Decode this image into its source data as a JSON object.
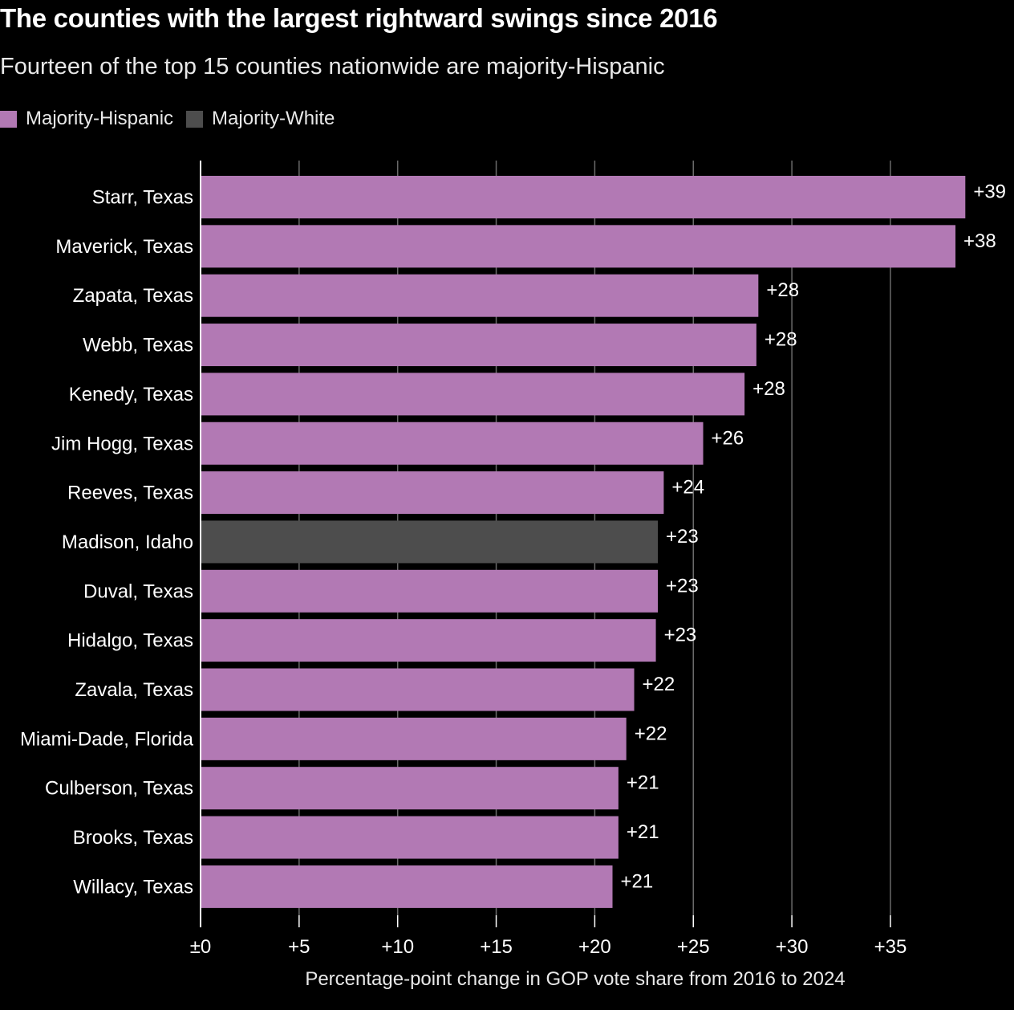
{
  "title": "The counties with the largest rightward swings since 2016",
  "subtitle": "Fourteen of the top 15 counties nationwide are majority-Hispanic",
  "legend": [
    {
      "label": "Majority-Hispanic",
      "color": "#b279b4"
    },
    {
      "label": "Majority-White",
      "color": "#4d4d4d"
    }
  ],
  "chart_data": {
    "type": "bar",
    "orientation": "horizontal",
    "categories": [
      "Starr, Texas",
      "Maverick, Texas",
      "Zapata, Texas",
      "Webb, Texas",
      "Kenedy, Texas",
      "Jim Hogg, Texas",
      "Reeves, Texas",
      "Madison, Idaho",
      "Duval, Texas",
      "Hidalgo, Texas",
      "Zavala, Texas",
      "Miami-Dade, Florida",
      "Culberson, Texas",
      "Brooks, Texas",
      "Willacy, Texas"
    ],
    "values": [
      38.8,
      38.3,
      28.3,
      28.2,
      27.6,
      25.5,
      23.5,
      23.2,
      23.2,
      23.1,
      22.0,
      21.6,
      21.2,
      21.2,
      20.9
    ],
    "value_labels": [
      "+39",
      "+38",
      "+28",
      "+28",
      "+28",
      "+26",
      "+24",
      "+23",
      "+23",
      "+23",
      "+22",
      "+22",
      "+21",
      "+21",
      "+21"
    ],
    "groups": [
      "Majority-Hispanic",
      "Majority-Hispanic",
      "Majority-Hispanic",
      "Majority-Hispanic",
      "Majority-Hispanic",
      "Majority-Hispanic",
      "Majority-Hispanic",
      "Majority-White",
      "Majority-Hispanic",
      "Majority-Hispanic",
      "Majority-Hispanic",
      "Majority-Hispanic",
      "Majority-Hispanic",
      "Majority-Hispanic",
      "Majority-Hispanic"
    ],
    "xlabel": "Percentage-point change in GOP vote share from 2016 to 2024",
    "xlim": [
      0,
      38.8
    ],
    "xticks": [
      0,
      5,
      10,
      15,
      20,
      25,
      30,
      35
    ],
    "xtick_labels": [
      "±0",
      "+5",
      "+10",
      "+15",
      "+20",
      "+25",
      "+30",
      "+35"
    ],
    "grid": true
  }
}
